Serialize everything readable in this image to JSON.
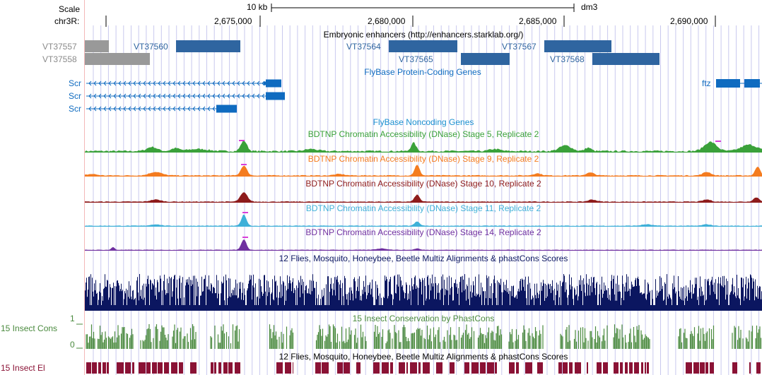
{
  "ruler": {
    "scale_label": "Scale",
    "scale_bar_label": "10 kb",
    "assembly": "dm3",
    "chrom_label": "chr3R:",
    "positions": [
      "2,675,000",
      "2,680,000",
      "2,685,000",
      "2,690,000"
    ]
  },
  "enhancers": {
    "title": "Embryonic enhancers (http://enhancers.starklab.org/)",
    "items": [
      {
        "name": "VT37557",
        "color": "#999999"
      },
      {
        "name": "VT37558",
        "color": "#999999"
      },
      {
        "name": "VT37560",
        "color": "#2f65a0"
      },
      {
        "name": "VT37564",
        "color": "#2f65a0"
      },
      {
        "name": "VT37565",
        "color": "#2f65a0"
      },
      {
        "name": "VT37567",
        "color": "#2f65a0"
      },
      {
        "name": "VT37568",
        "color": "#2f65a0"
      }
    ]
  },
  "genes": {
    "title": "FlyBase Protein-Coding Genes",
    "transcripts": [
      {
        "name": "Scr"
      },
      {
        "name": "Scr"
      },
      {
        "name": "Scr"
      },
      {
        "name": "ftz"
      }
    ],
    "color": "#0f6bc0"
  },
  "noncoding": {
    "title": "FlyBase Noncoding Genes"
  },
  "dnase_tracks": [
    {
      "title": "BDTNP Chromatin Accessibility (DNase) Stage 5, Replicate 2",
      "color": "#3aa13a"
    },
    {
      "title": "BDTNP Chromatin Accessibility (DNase) Stage 9, Replicate 2",
      "color": "#f47c20"
    },
    {
      "title": "BDTNP Chromatin Accessibility (DNase) Stage 10, Replicate 2",
      "color": "#8e1b1b"
    },
    {
      "title": "BDTNP Chromatin Accessibility (DNase) Stage 11, Replicate 2",
      "color": "#3fb0d8"
    },
    {
      "title": "BDTNP Chromatin Accessibility (DNase) Stage 14, Replicate 2",
      "color": "#7030a0"
    }
  ],
  "multiz": {
    "title": "12 Flies, Mosquito, Honeybee, Beetle Multiz Alignments & phastCons Scores",
    "color": "#0b1660"
  },
  "phastcons": {
    "left_label": "15 Insect Cons",
    "title": "15 Insect Conservation by PhastCons",
    "axis_top": "1",
    "axis_bottom": "0",
    "color": "#4a8a3e"
  },
  "elements": {
    "left_label": "15 Insect El",
    "title": "12 Flies, Mosquito, Honeybee, Beetle Multiz Alignments & phastCons Scores",
    "color": "#8a1235"
  },
  "colors": {
    "gridline": "#c9c9ee",
    "left_edge": "#f4b8b8",
    "peak_cap": "#d93fd9"
  }
}
